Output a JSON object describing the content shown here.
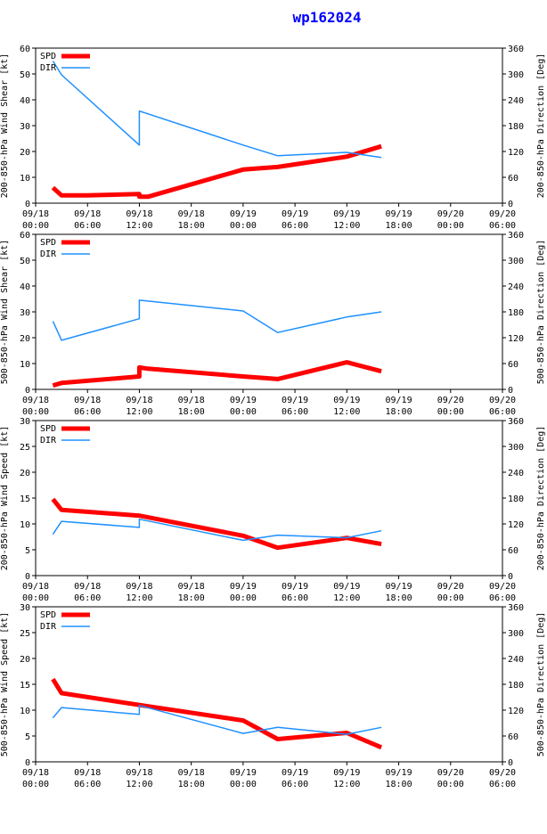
{
  "title": "wp162024",
  "colors": {
    "spd": "#ff0000",
    "dir": "#1e90ff",
    "title": "#0000ff"
  },
  "x_ticks": [
    "09/18\n00:00",
    "09/18\n06:00",
    "09/18\n12:00",
    "09/18\n18:00",
    "09/19\n00:00",
    "09/19\n06:00",
    "09/19\n12:00",
    "09/19\n18:00",
    "09/20\n00:00",
    "09/20\n06:00"
  ],
  "chart_data": [
    {
      "type": "line",
      "ylabel_left": "200-850-hPa Wind Shear [kt]",
      "ylabel_right": "200-850-hPa Direction [Deg]",
      "ylim_left": [
        0,
        60
      ],
      "yticks_left": [
        0,
        10,
        20,
        30,
        40,
        50,
        60
      ],
      "ylim_right": [
        0,
        360
      ],
      "yticks_right": [
        0,
        60,
        120,
        180,
        240,
        300,
        360
      ],
      "xlim_hours": [
        0,
        54
      ],
      "legend": [
        "SPD",
        "DIR"
      ],
      "series": [
        {
          "name": "SPD",
          "axis": "left",
          "x": [
            2,
            3,
            6,
            12,
            12,
            13,
            24,
            28,
            36,
            40
          ],
          "y": [
            6,
            3,
            3,
            3.5,
            2.5,
            2.5,
            13,
            14,
            18,
            22
          ]
        },
        {
          "name": "DIR",
          "axis": "right",
          "x": [
            2,
            3,
            12,
            12,
            24,
            28,
            36,
            40
          ],
          "y": [
            330,
            298,
            135,
            214,
            135,
            110,
            118,
            106
          ]
        }
      ]
    },
    {
      "type": "line",
      "ylabel_left": "500-850-hPa Wind Shear [kt]",
      "ylabel_right": "500-850-hPa Direction [Deg]",
      "ylim_left": [
        0,
        60
      ],
      "yticks_left": [
        0,
        10,
        20,
        30,
        40,
        50,
        60
      ],
      "ylim_right": [
        0,
        360
      ],
      "yticks_right": [
        0,
        60,
        120,
        180,
        240,
        300,
        360
      ],
      "xlim_hours": [
        0,
        54
      ],
      "legend": [
        "SPD",
        "DIR"
      ],
      "series": [
        {
          "name": "SPD",
          "axis": "left",
          "x": [
            2,
            3,
            12,
            12,
            13,
            24,
            28,
            36,
            40
          ],
          "y": [
            1.5,
            2.5,
            5,
            8.5,
            8,
            5,
            4,
            10.5,
            7
          ]
        },
        {
          "name": "DIR",
          "axis": "right",
          "x": [
            2,
            3,
            12,
            12,
            24,
            28,
            36,
            40
          ],
          "y": [
            158,
            114,
            164,
            207,
            182,
            132,
            168,
            180
          ]
        }
      ]
    },
    {
      "type": "line",
      "ylabel_left": "200-850-hPa Wind Speed [kt]",
      "ylabel_right": "200-850-hPa Direction [Deg]",
      "ylim_left": [
        0,
        30
      ],
      "yticks_left": [
        0,
        5,
        10,
        15,
        20,
        25,
        30
      ],
      "ylim_right": [
        0,
        360
      ],
      "yticks_right": [
        0,
        60,
        120,
        180,
        240,
        300,
        360
      ],
      "xlim_hours": [
        0,
        54
      ],
      "legend": [
        "SPD",
        "DIR"
      ],
      "series": [
        {
          "name": "SPD",
          "axis": "left",
          "x": [
            2,
            3,
            12,
            24,
            28,
            36,
            40
          ],
          "y": [
            14.8,
            12.7,
            11.6,
            7.7,
            5.4,
            7.3,
            6.1
          ]
        },
        {
          "name": "DIR",
          "axis": "right",
          "x": [
            2,
            3,
            12,
            12,
            24,
            28,
            36,
            40
          ],
          "y": [
            96,
            126,
            112,
            131,
            82,
            94,
            88,
            104
          ]
        }
      ]
    },
    {
      "type": "line",
      "ylabel_left": "500-850-hPa Wind Speed [kt]",
      "ylabel_right": "500-850-hPa Direction [Deg]",
      "ylim_left": [
        0,
        30
      ],
      "yticks_left": [
        0,
        5,
        10,
        15,
        20,
        25,
        30
      ],
      "ylim_right": [
        0,
        360
      ],
      "yticks_right": [
        0,
        60,
        120,
        180,
        240,
        300,
        360
      ],
      "xlim_hours": [
        0,
        54
      ],
      "legend": [
        "SPD",
        "DIR"
      ],
      "series": [
        {
          "name": "SPD",
          "axis": "left",
          "x": [
            2,
            3,
            12,
            24,
            28,
            36,
            40
          ],
          "y": [
            16,
            13.3,
            11,
            8,
            4.4,
            5.6,
            2.8
          ]
        },
        {
          "name": "DIR",
          "axis": "right",
          "x": [
            2,
            3,
            12,
            12,
            24,
            28,
            36,
            40
          ],
          "y": [
            102,
            126,
            110,
            131,
            66,
            80,
            64,
            80
          ]
        }
      ]
    }
  ]
}
